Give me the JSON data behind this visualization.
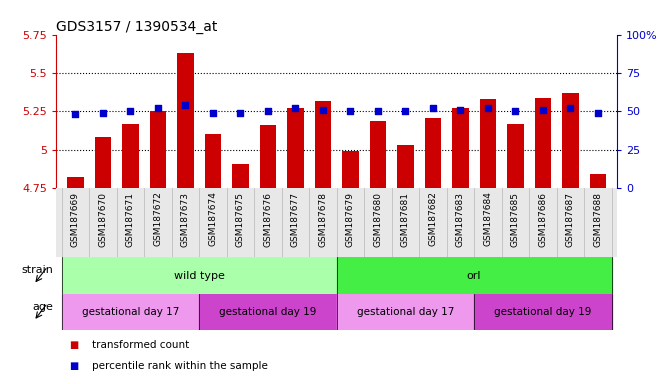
{
  "title": "GDS3157 / 1390534_at",
  "samples": [
    "GSM187669",
    "GSM187670",
    "GSM187671",
    "GSM187672",
    "GSM187673",
    "GSM187674",
    "GSM187675",
    "GSM187676",
    "GSM187677",
    "GSM187678",
    "GSM187679",
    "GSM187680",
    "GSM187681",
    "GSM187682",
    "GSM187683",
    "GSM187684",
    "GSM187685",
    "GSM187686",
    "GSM187687",
    "GSM187688"
  ],
  "bar_values": [
    4.82,
    5.08,
    5.17,
    5.25,
    5.63,
    5.1,
    4.91,
    5.16,
    5.27,
    5.32,
    4.99,
    5.19,
    5.03,
    5.21,
    5.27,
    5.33,
    5.17,
    5.34,
    5.37,
    4.84
  ],
  "dot_values": [
    48,
    49,
    50,
    52,
    54,
    49,
    49,
    50,
    52,
    51,
    50,
    50,
    50,
    52,
    51,
    52,
    50,
    51,
    52,
    49
  ],
  "ylim_left": [
    4.75,
    5.75
  ],
  "ylim_right": [
    0,
    100
  ],
  "yticks_left": [
    4.75,
    5.0,
    5.25,
    5.5,
    5.75
  ],
  "yticks_right": [
    0,
    25,
    50,
    75,
    100
  ],
  "ytick_labels_left": [
    "4.75",
    "5",
    "5.25",
    "5.5",
    "5.75"
  ],
  "ytick_labels_right": [
    "0",
    "25",
    "50",
    "75",
    "100%"
  ],
  "bar_color": "#cc0000",
  "dot_color": "#0000cc",
  "hline_values": [
    5.0,
    5.25,
    5.5
  ],
  "strain_groups": [
    {
      "label": "wild type",
      "start": 0,
      "end": 9,
      "color": "#aaffaa"
    },
    {
      "label": "orl",
      "start": 10,
      "end": 19,
      "color": "#44ee44"
    }
  ],
  "age_groups": [
    {
      "label": "gestational day 17",
      "start": 0,
      "end": 4,
      "color": "#ee99ee"
    },
    {
      "label": "gestational day 19",
      "start": 5,
      "end": 9,
      "color": "#cc44cc"
    },
    {
      "label": "gestational day 17",
      "start": 10,
      "end": 14,
      "color": "#ee99ee"
    },
    {
      "label": "gestational day 19",
      "start": 15,
      "end": 19,
      "color": "#cc44cc"
    }
  ],
  "legend_items": [
    {
      "label": "transformed count",
      "color": "#cc0000"
    },
    {
      "label": "percentile rank within the sample",
      "color": "#0000cc"
    }
  ],
  "strain_row_label": "strain",
  "age_row_label": "age",
  "xticklabel_fontsize": 6.5,
  "ytick_fontsize": 8,
  "title_fontsize": 10
}
